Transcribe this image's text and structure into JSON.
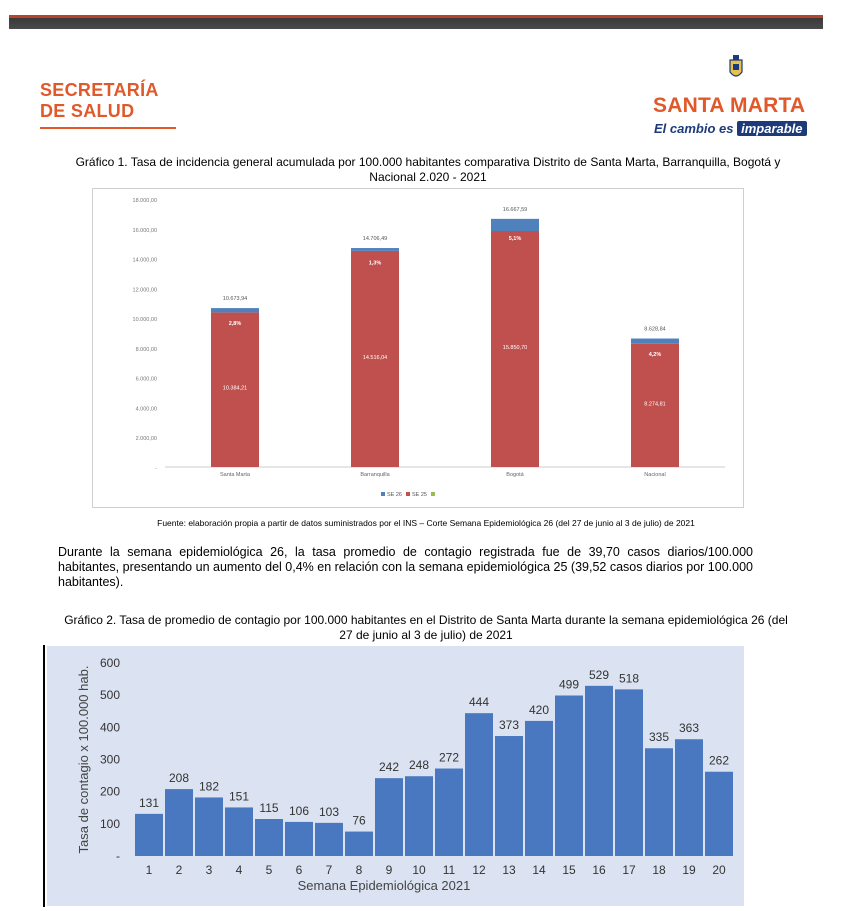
{
  "header": {
    "org_line1": "SECRETARÍA",
    "org_line2": "DE SALUD",
    "brand_name": "SANTA MARTA",
    "slogan_prefix": "El cambio es",
    "slogan_highlight": "imparable"
  },
  "figure1": {
    "title": "Gráfico 1.  Tasa de incidencia general acumulada por 100.000 habitantes comparativa Distrito de Santa Marta, Barranquilla, Bogotá y Nacional 2.020 - 2021",
    "source": "Fuente: elaboración propia a partir de datos suministrados por el INS – Corte Semana Epidemiológica 26 (del 27 de junio al 3 de julio) de 2021"
  },
  "paragraph": "Durante la semana epidemiológica 26, la tasa promedio de contagio registrada fue de 39,70 casos diarios/100.000 habitantes, presentando un aumento del 0,4% en relación con la semana epidemiológica 25 (39,52 casos diarios por 100.000 habitantes).",
  "figure2": {
    "title": "Gráfico 2.  Tasa de promedio de contagio por 100.000 habitantes en el Distrito de Santa Marta durante la semana epidemiológica 26 (del 27 de junio al 3 de julio) de 2021"
  },
  "colors": {
    "accent_orange": "#e0592a",
    "brand_blue": "#1d3a7a",
    "bar_red": "#c0504d",
    "bar_blue": "#4f81bd",
    "bar2_blue": "#4a78c0"
  },
  "chart_data": [
    {
      "type": "bar",
      "stacked": true,
      "categories": [
        "Santa Marta",
        "Barranquilla",
        "Bogotá",
        "Nacional"
      ],
      "series": [
        {
          "name": "SE 26",
          "color": "#4f81bd",
          "values": [
            289,
            190,
            817,
            354
          ],
          "labels": [
            "2,8%",
            "1,3%",
            "5,1%",
            "4,2%"
          ]
        },
        {
          "name": "SE 25",
          "color": "#c0504d",
          "values": [
            10384.21,
            14516.04,
            15850.7,
            8274.81
          ],
          "labels": [
            "10.384,21",
            "14.516,04",
            "15.850,70",
            "8.274,81"
          ]
        },
        {
          "name": "",
          "color": "#9bbb59",
          "values": [
            0,
            0,
            0,
            0
          ]
        }
      ],
      "totals_labels": [
        "10.673,94",
        "14.706,49",
        "16.667,59",
        "8.628,84"
      ],
      "yticks": [
        "-",
        "2.000,00",
        "4.000,00",
        "6.000,00",
        "8.000,00",
        "10.000,00",
        "12.000,00",
        "14.000,00",
        "16.000,00",
        "18.000,00"
      ],
      "ylim": [
        0,
        18000
      ],
      "legend": "bottom",
      "grid": false
    },
    {
      "type": "bar",
      "categories": [
        "1",
        "2",
        "3",
        "4",
        "5",
        "6",
        "7",
        "8",
        "9",
        "10",
        "11",
        "12",
        "13",
        "14",
        "15",
        "16",
        "17",
        "18",
        "19",
        "20"
      ],
      "values": [
        131,
        208,
        182,
        151,
        115,
        106,
        103,
        76,
        242,
        248,
        272,
        444,
        373,
        420,
        499,
        529,
        518,
        335,
        363,
        262
      ],
      "xlabel": "Semana Epidemiológica 2021",
      "ylabel": "Tasa de contagio x 100.000 hab.",
      "ylim": [
        0,
        600
      ],
      "yticks": [
        100,
        200,
        300,
        400,
        500,
        600
      ],
      "grid": false,
      "color": "#4a78c0"
    }
  ]
}
